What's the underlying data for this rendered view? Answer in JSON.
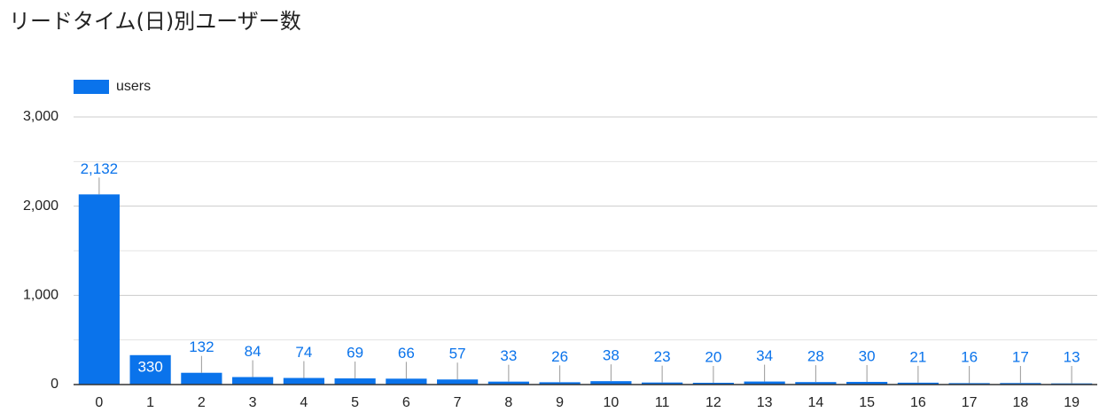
{
  "chart_data": {
    "type": "bar",
    "title": "リードタイム(日)別ユーザー数",
    "categories": [
      "0",
      "1",
      "2",
      "3",
      "4",
      "5",
      "6",
      "7",
      "8",
      "9",
      "10",
      "11",
      "12",
      "13",
      "14",
      "15",
      "16",
      "17",
      "18",
      "19"
    ],
    "series": [
      {
        "name": "users",
        "color": "#0a73eb",
        "values": [
          2132,
          330,
          132,
          84,
          74,
          69,
          66,
          57,
          33,
          26,
          38,
          23,
          20,
          34,
          28,
          30,
          21,
          16,
          17,
          13
        ],
        "value_labels": [
          "2,132",
          "330",
          "132",
          "84",
          "74",
          "69",
          "66",
          "57",
          "33",
          "26",
          "38",
          "23",
          "20",
          "34",
          "28",
          "30",
          "21",
          "16",
          "17",
          "13"
        ]
      }
    ],
    "ylim": [
      0,
      3000
    ],
    "yticks": [
      0,
      {
        "value": 1000,
        "label": "1,000"
      },
      {
        "value": 2000,
        "label": "2,000"
      },
      {
        "value": 3000,
        "label": "3,000"
      }
    ],
    "grid": true,
    "minor_grid": true,
    "legend": "top-left"
  }
}
